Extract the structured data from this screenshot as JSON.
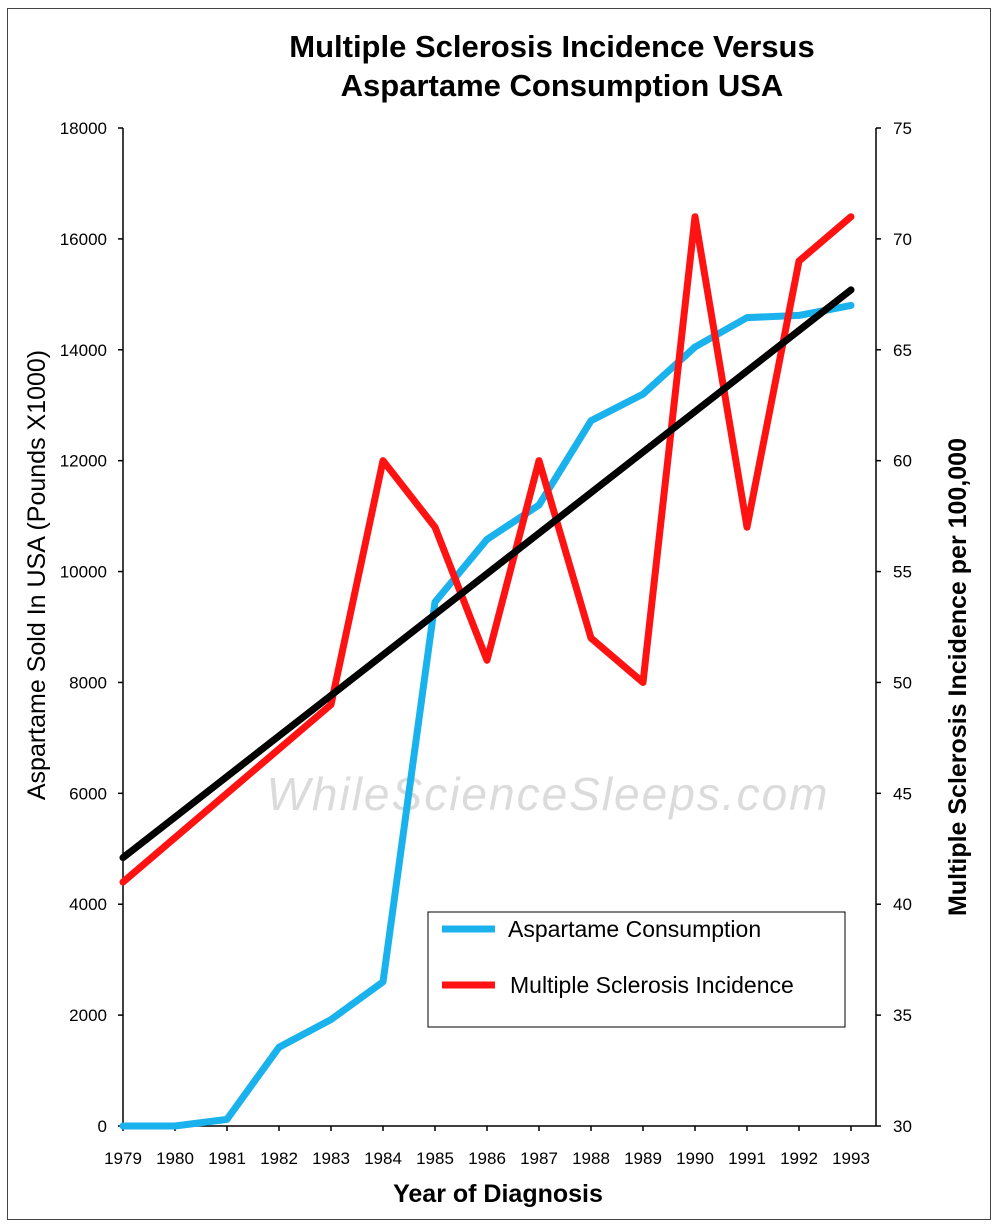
{
  "chart_data": {
    "type": "line",
    "title_line1": "Multiple Sclerosis Incidence Versus",
    "title_line2": "Aspartame Consumption USA",
    "xlabel": "Year of Diagnosis",
    "ylabel_left": "Aspartame Sold In USA  (Pounds X1000)",
    "ylabel_right": "Multiple Sclerosis Incidence per 100,000",
    "watermark": "WhileScienceSleeps.com",
    "x": [
      "1979",
      "1980",
      "1981",
      "1982",
      "1983",
      "1984",
      "1985",
      "1986",
      "1987",
      "1988",
      "1989",
      "1990",
      "1991",
      "1992",
      "1993"
    ],
    "ylim_left": [
      0,
      18000
    ],
    "ylim_right": [
      30,
      75
    ],
    "yticks_left": [
      "0",
      "2000",
      "4000",
      "6000",
      "8000",
      "10000",
      "12000",
      "14000",
      "16000",
      "18000"
    ],
    "yticks_right": [
      "30",
      "35",
      "40",
      "45",
      "50",
      "55",
      "60",
      "65",
      "70",
      "75"
    ],
    "series": [
      {
        "name": "Aspartame Consumption",
        "axis": "left",
        "color": "#1ab2ec",
        "values": [
          0,
          0,
          120,
          1420,
          1920,
          2600,
          9450,
          10580,
          11200,
          12720,
          13200,
          14050,
          14580,
          14620,
          14800
        ]
      },
      {
        "name": "Multiple Sclerosis Incidence",
        "axis": "right",
        "color": "#ff1212",
        "values": [
          41,
          43,
          45,
          47,
          49,
          60,
          57,
          51,
          60,
          52,
          50,
          71,
          57,
          69,
          71
        ]
      }
    ],
    "trendline": {
      "axis": "right",
      "color": "#000000",
      "start": 42.1,
      "end": 67.7
    },
    "legend_position": "bottom-right",
    "grid": false
  }
}
